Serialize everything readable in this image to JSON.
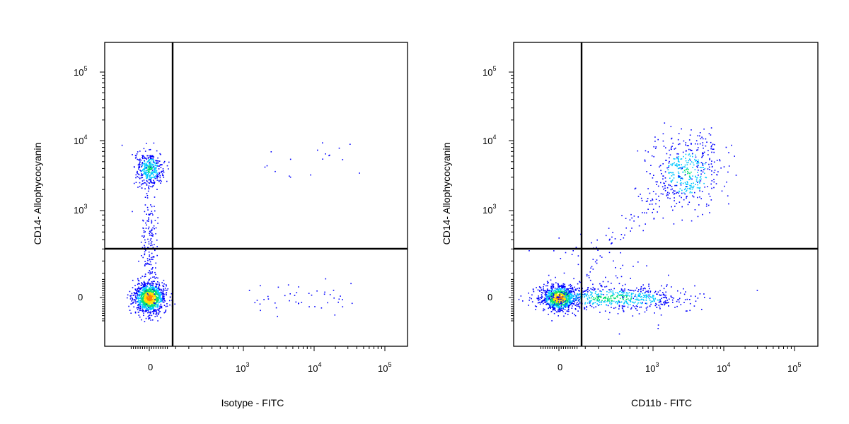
{
  "chart_data": [
    {
      "type": "scatter",
      "subtype": "flow-cytometry-density-dot-plot",
      "xlabel": "Isotype - FITC",
      "ylabel": "CD14- Allophycocyanin",
      "x_scale": "biexponential",
      "y_scale": "biexponential",
      "x_ticks": [
        {
          "value": 0,
          "label": "0"
        },
        {
          "value": 1000,
          "base": "10",
          "exp": "3"
        },
        {
          "value": 10000,
          "base": "10",
          "exp": "4"
        },
        {
          "value": 100000,
          "base": "10",
          "exp": "5"
        }
      ],
      "y_ticks": [
        {
          "value": 0,
          "label": "0"
        },
        {
          "value": 1000,
          "base": "10",
          "exp": "3"
        },
        {
          "value": 10000,
          "base": "10",
          "exp": "4"
        },
        {
          "value": 100000,
          "base": "10",
          "exp": "5"
        }
      ],
      "quadrant_gate": {
        "x": 300,
        "y": 300
      },
      "populations": [
        {
          "label": "CD14- FITC- (main lymphocyte cluster)",
          "x_center": 0,
          "y_center": 0,
          "count": 1100
        },
        {
          "label": "CD14+ FITC- (monocytes)",
          "x_center": 0,
          "y_center": 4000,
          "count": 380
        },
        {
          "label": "vertical smear between clusters",
          "x_center": 0,
          "y_center": 500,
          "count": 180
        },
        {
          "label": "sparse FITC+ events (low CD14)",
          "x_center": 700,
          "y_center": 0,
          "count": 45
        },
        {
          "label": "sparse FITC+ events (high CD14)",
          "x_center": 900,
          "y_center": 4500,
          "count": 18
        }
      ],
      "color_scale": [
        "#0000ff",
        "#00c8ff",
        "#00e070",
        "#ffe000",
        "#ff7f00",
        "#ff0000"
      ]
    },
    {
      "type": "scatter",
      "subtype": "flow-cytometry-density-dot-plot",
      "xlabel": "CD11b - FITC",
      "ylabel": "CD14- Allophycocyanin",
      "x_scale": "biexponential",
      "y_scale": "biexponential",
      "x_ticks": [
        {
          "value": 0,
          "label": "0"
        },
        {
          "value": 1000,
          "base": "10",
          "exp": "3"
        },
        {
          "value": 10000,
          "base": "10",
          "exp": "4"
        },
        {
          "value": 100000,
          "base": "10",
          "exp": "5"
        }
      ],
      "y_ticks": [
        {
          "value": 0,
          "label": "0"
        },
        {
          "value": 1000,
          "base": "10",
          "exp": "3"
        },
        {
          "value": 10000,
          "base": "10",
          "exp": "4"
        },
        {
          "value": 100000,
          "base": "10",
          "exp": "5"
        }
      ],
      "quadrant_gate": {
        "x": 300,
        "y": 300
      },
      "populations": [
        {
          "label": "CD11b- CD14- (main cluster)",
          "x_center": 0,
          "y_center": 0,
          "count": 900
        },
        {
          "label": "CD11b+ CD14- (horizontal band)",
          "x_center": 400,
          "y_center": 0,
          "count": 650
        },
        {
          "label": "CD11b+ CD14+ (monocytes)",
          "x_center": 3000,
          "y_center": 3500,
          "count": 420
        },
        {
          "label": "diagonal transition events",
          "x_center": 900,
          "y_center": 1200,
          "count": 120
        },
        {
          "label": "scattered low events",
          "x_center": 300,
          "y_center": 150,
          "count": 90
        }
      ],
      "color_scale": [
        "#0000ff",
        "#00c8ff",
        "#00e070",
        "#ffe000",
        "#ff7f00",
        "#ff0000"
      ]
    }
  ]
}
